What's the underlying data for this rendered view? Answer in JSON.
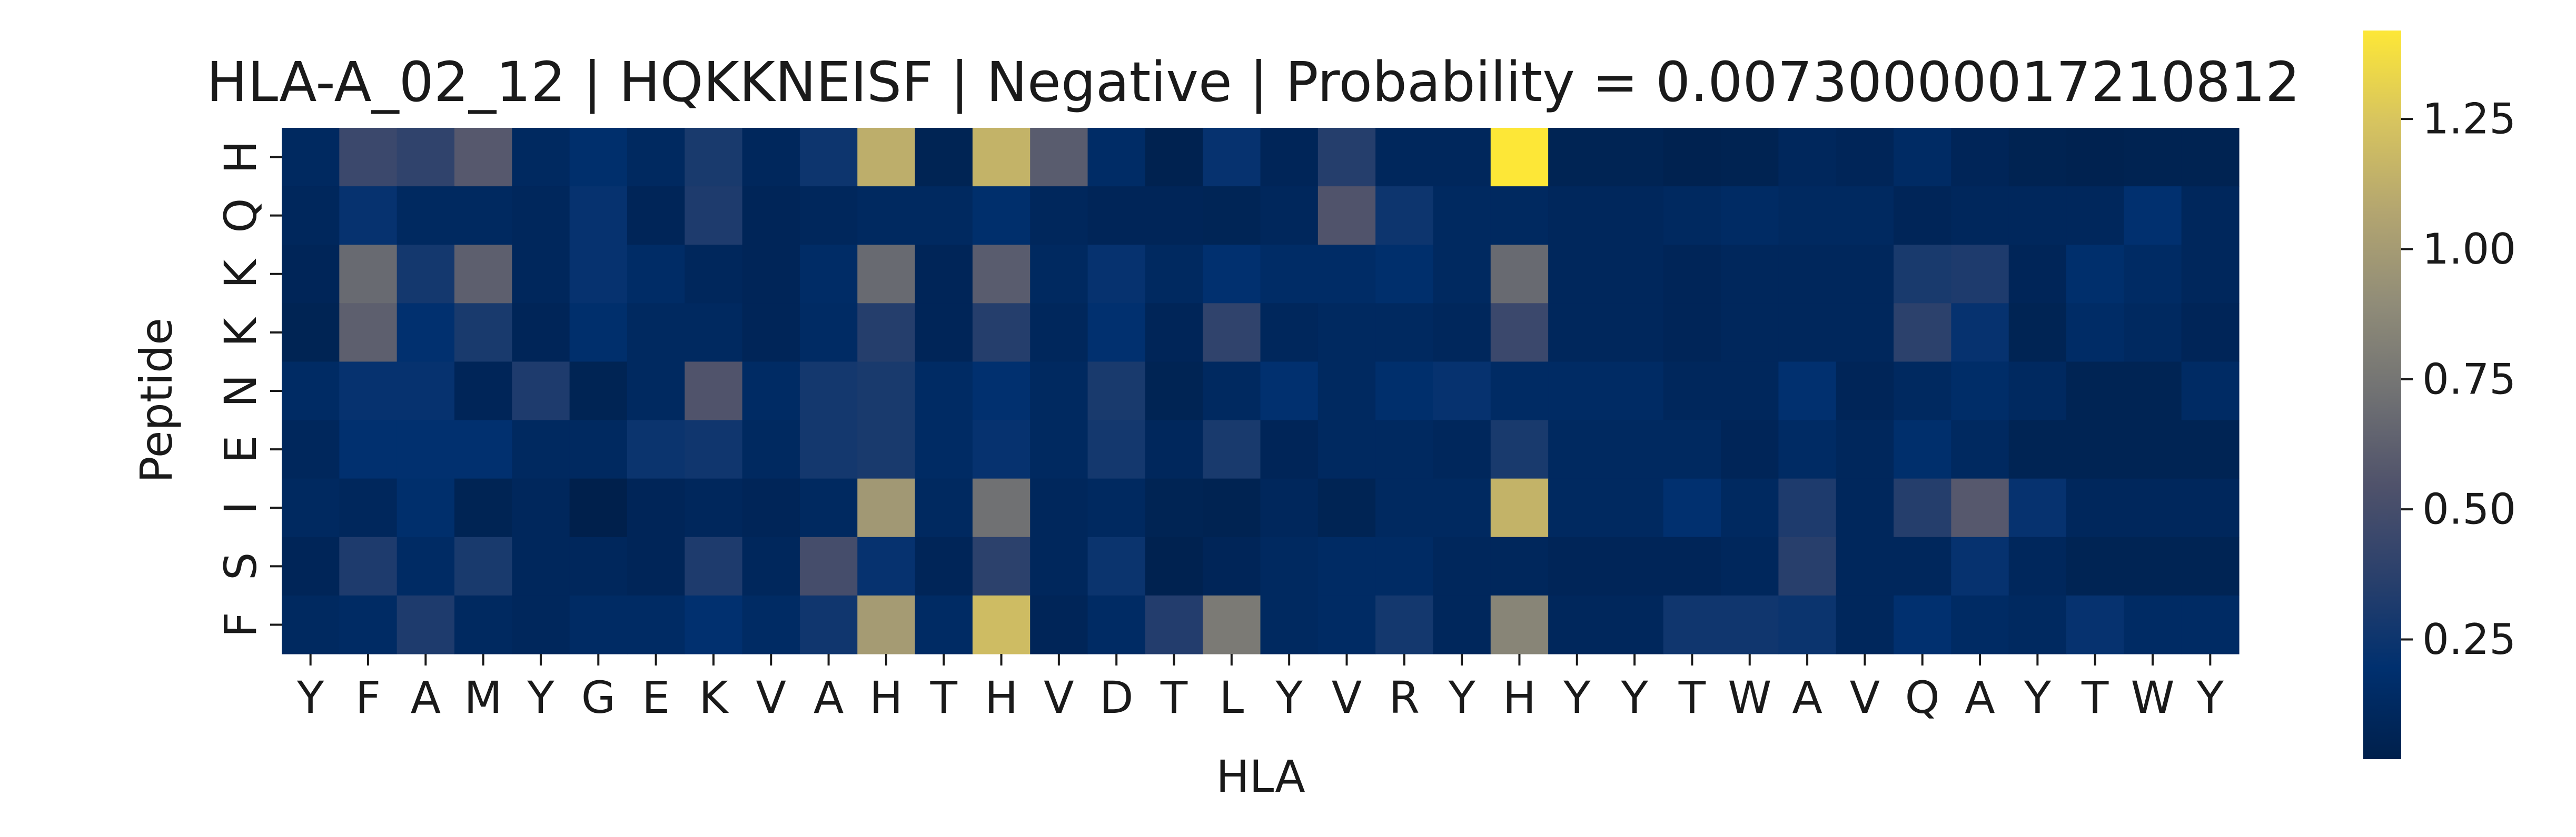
{
  "chart_data": {
    "type": "heatmap",
    "title": "HLA-A_02_12 | HQKKNEISF | Negative | Probability = 0.007300000172108412",
    "title_visible": "HLA-A_02_12 | HQKKNEISF | Negative | Probability = 0.00730000017210812",
    "xlabel": "HLA",
    "ylabel": "Peptide",
    "x_labels": [
      "Y",
      "F",
      "A",
      "M",
      "Y",
      "G",
      "E",
      "K",
      "V",
      "A",
      "H",
      "T",
      "H",
      "V",
      "D",
      "T",
      "L",
      "Y",
      "V",
      "R",
      "Y",
      "H",
      "Y",
      "Y",
      "T",
      "W",
      "A",
      "V",
      "Q",
      "A",
      "Y",
      "T",
      "W",
      "Y"
    ],
    "y_labels": [
      "H",
      "Q",
      "K",
      "K",
      "N",
      "E",
      "I",
      "S",
      "F"
    ],
    "colormap": "cividis",
    "colorbar": {
      "min": 0.02,
      "max": 1.42,
      "ticks": [
        0.25,
        0.5,
        0.75,
        1.0,
        1.25
      ],
      "tick_labels": [
        "0.25",
        "0.50",
        "0.75",
        "1.00",
        "1.25"
      ]
    },
    "values": [
      [
        0.12,
        0.45,
        0.4,
        0.58,
        0.12,
        0.18,
        0.12,
        0.3,
        0.1,
        0.25,
        1.12,
        0.06,
        1.15,
        0.6,
        0.15,
        0.04,
        0.22,
        0.08,
        0.35,
        0.1,
        0.1,
        1.42,
        0.06,
        0.06,
        0.04,
        0.05,
        0.1,
        0.08,
        0.14,
        0.08,
        0.05,
        0.04,
        0.05,
        0.05
      ],
      [
        0.1,
        0.22,
        0.12,
        0.12,
        0.1,
        0.22,
        0.08,
        0.32,
        0.08,
        0.1,
        0.12,
        0.12,
        0.18,
        0.1,
        0.08,
        0.08,
        0.07,
        0.1,
        0.55,
        0.25,
        0.12,
        0.12,
        0.1,
        0.1,
        0.12,
        0.14,
        0.12,
        0.12,
        0.08,
        0.1,
        0.1,
        0.1,
        0.2,
        0.1
      ],
      [
        0.08,
        0.68,
        0.28,
        0.62,
        0.1,
        0.22,
        0.15,
        0.1,
        0.08,
        0.15,
        0.68,
        0.08,
        0.6,
        0.12,
        0.22,
        0.12,
        0.2,
        0.15,
        0.15,
        0.18,
        0.12,
        0.68,
        0.1,
        0.1,
        0.08,
        0.1,
        0.1,
        0.1,
        0.3,
        0.32,
        0.08,
        0.18,
        0.14,
        0.1
      ],
      [
        0.06,
        0.62,
        0.2,
        0.3,
        0.08,
        0.18,
        0.12,
        0.12,
        0.08,
        0.14,
        0.35,
        0.08,
        0.35,
        0.1,
        0.2,
        0.08,
        0.4,
        0.1,
        0.12,
        0.12,
        0.1,
        0.45,
        0.1,
        0.1,
        0.08,
        0.1,
        0.1,
        0.1,
        0.38,
        0.22,
        0.06,
        0.15,
        0.12,
        0.08
      ],
      [
        0.14,
        0.22,
        0.22,
        0.08,
        0.32,
        0.06,
        0.12,
        0.55,
        0.14,
        0.28,
        0.3,
        0.14,
        0.2,
        0.12,
        0.3,
        0.06,
        0.12,
        0.2,
        0.12,
        0.18,
        0.22,
        0.14,
        0.14,
        0.14,
        0.1,
        0.1,
        0.2,
        0.08,
        0.12,
        0.16,
        0.12,
        0.06,
        0.06,
        0.14
      ],
      [
        0.1,
        0.2,
        0.2,
        0.2,
        0.12,
        0.12,
        0.24,
        0.26,
        0.12,
        0.28,
        0.3,
        0.14,
        0.22,
        0.12,
        0.28,
        0.1,
        0.3,
        0.08,
        0.12,
        0.12,
        0.1,
        0.3,
        0.12,
        0.12,
        0.12,
        0.08,
        0.14,
        0.1,
        0.18,
        0.12,
        0.06,
        0.06,
        0.06,
        0.06
      ],
      [
        0.12,
        0.1,
        0.18,
        0.06,
        0.1,
        0.02,
        0.08,
        0.1,
        0.08,
        0.12,
        0.98,
        0.12,
        0.72,
        0.1,
        0.12,
        0.06,
        0.05,
        0.1,
        0.06,
        0.12,
        0.12,
        1.15,
        0.12,
        0.12,
        0.2,
        0.12,
        0.32,
        0.1,
        0.35,
        0.58,
        0.22,
        0.1,
        0.1,
        0.1
      ],
      [
        0.08,
        0.32,
        0.14,
        0.3,
        0.1,
        0.1,
        0.08,
        0.32,
        0.1,
        0.5,
        0.22,
        0.08,
        0.38,
        0.1,
        0.24,
        0.04,
        0.08,
        0.12,
        0.14,
        0.14,
        0.1,
        0.1,
        0.08,
        0.08,
        0.08,
        0.1,
        0.36,
        0.1,
        0.1,
        0.22,
        0.1,
        0.06,
        0.06,
        0.06
      ],
      [
        0.12,
        0.14,
        0.32,
        0.12,
        0.1,
        0.14,
        0.14,
        0.2,
        0.14,
        0.26,
        1.0,
        0.14,
        1.2,
        0.08,
        0.14,
        0.34,
        0.78,
        0.12,
        0.14,
        0.28,
        0.1,
        0.85,
        0.1,
        0.1,
        0.26,
        0.26,
        0.24,
        0.1,
        0.2,
        0.14,
        0.12,
        0.22,
        0.14,
        0.14
      ]
    ]
  }
}
